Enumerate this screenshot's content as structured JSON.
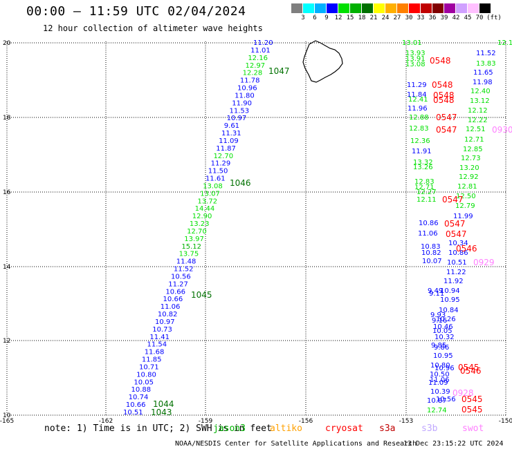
{
  "title": "00:00 – 11:59 UTC 02/04/2024",
  "subtitle": "12 hour collection of altimeter wave heights",
  "colorbar": {
    "colors": [
      "#7f7f7f",
      "#00ffff",
      "#00b0ff",
      "#0000ff",
      "#00e000",
      "#00b000",
      "#007000",
      "#ffff00",
      "#ffb000",
      "#ff8000",
      "#ff0000",
      "#c00000",
      "#800000",
      "#a000a0",
      "#d0a0ff",
      "#ffc0ff",
      "#000000"
    ],
    "labels": [
      "3",
      "6",
      "9",
      "12",
      "15",
      "18",
      "21",
      "24",
      "27",
      "30",
      "33",
      "36",
      "39",
      "42",
      "45",
      "70"
    ],
    "unit": "(ft)"
  },
  "axes": {
    "x_ticks": [
      "-165",
      "-162",
      "-159",
      "-156",
      "-153",
      "-150"
    ],
    "y_ticks": [
      "10",
      "12",
      "14",
      "16",
      "18",
      "20"
    ]
  },
  "tracks": {
    "track1": {
      "points": [
        [
          "11.20",
          "#0000ff"
        ],
        [
          "11.01",
          "#0000ff"
        ],
        [
          "12.16",
          "#00e000"
        ],
        [
          "12.97",
          "#00e000"
        ],
        [
          "12.28",
          "#00e000"
        ],
        [
          "11.78",
          "#0000ff"
        ],
        [
          "10.96",
          "#0000ff"
        ],
        [
          "11.80",
          "#0000ff"
        ],
        [
          "11.90",
          "#0000ff"
        ],
        [
          "11.53",
          "#0000ff"
        ],
        [
          "10.97",
          "#0000ff"
        ],
        [
          "9.61",
          "#0000ff"
        ],
        [
          "11.31",
          "#0000ff"
        ],
        [
          "11.09",
          "#0000ff"
        ],
        [
          "11.87",
          "#0000ff"
        ],
        [
          "12.70",
          "#00e000"
        ],
        [
          "11.29",
          "#0000ff"
        ],
        [
          "11.50",
          "#0000ff"
        ],
        [
          "11.61",
          "#0000ff"
        ],
        [
          "13.08",
          "#00e000"
        ],
        [
          "13.07",
          "#00e000"
        ],
        [
          "13.72",
          "#00e000"
        ],
        [
          "14.44",
          "#00e000"
        ],
        [
          "12.90",
          "#00e000"
        ],
        [
          "13.23",
          "#00e000"
        ],
        [
          "12.70",
          "#00e000"
        ],
        [
          "13.97",
          "#00e000"
        ],
        [
          "15.12",
          "#00b000"
        ],
        [
          "13.75",
          "#00e000"
        ],
        [
          "11.48",
          "#0000ff"
        ],
        [
          "11.52",
          "#0000ff"
        ],
        [
          "10.56",
          "#0000ff"
        ],
        [
          "11.27",
          "#0000ff"
        ],
        [
          "10.66",
          "#0000ff"
        ],
        [
          "10.66",
          "#0000ff"
        ],
        [
          "11.06",
          "#0000ff"
        ],
        [
          "10.82",
          "#0000ff"
        ],
        [
          "10.97",
          "#0000ff"
        ],
        [
          "10.73",
          "#0000ff"
        ],
        [
          "11.41",
          "#0000ff"
        ],
        [
          "11.54",
          "#0000ff"
        ],
        [
          "11.68",
          "#0000ff"
        ],
        [
          "11.85",
          "#0000ff"
        ],
        [
          "10.71",
          "#0000ff"
        ],
        [
          "10.80",
          "#0000ff"
        ],
        [
          "10.05",
          "#0000ff"
        ],
        [
          "10.88",
          "#0000ff"
        ],
        [
          "10.74",
          "#0000ff"
        ],
        [
          "10.66",
          "#0000ff"
        ],
        [
          "10.51",
          "#0000ff"
        ]
      ],
      "times": [
        "1047",
        "1046",
        "1045",
        "1044",
        "1043"
      ]
    },
    "track2": {
      "points": [
        [
          "13.01",
          "#00e000"
        ],
        [
          "13.93",
          "#00e000"
        ],
        [
          "13.91",
          "#00e000"
        ],
        [
          "13.08",
          "#00e000"
        ],
        [
          "11.29",
          "#0000ff"
        ],
        [
          "11.84",
          "#0000ff"
        ],
        [
          "12.41",
          "#00e000"
        ],
        [
          "11.96",
          "#0000ff"
        ],
        [
          "12.88",
          "#00e000"
        ],
        [
          "12.83",
          "#00e000"
        ],
        [
          "12.36",
          "#00e000"
        ],
        [
          "11.91",
          "#0000ff"
        ],
        [
          "13.32",
          "#00e000"
        ],
        [
          "13.26",
          "#00e000"
        ],
        [
          "12.83",
          "#00e000"
        ],
        [
          "12.71",
          "#00e000"
        ],
        [
          "12.27",
          "#00e000"
        ],
        [
          "12.11",
          "#00e000"
        ]
      ]
    },
    "track3": {
      "points": [
        [
          "12.16",
          "#00e000"
        ],
        [
          "11.52",
          "#0000ff"
        ],
        [
          "13.83",
          "#00e000"
        ],
        [
          "11.65",
          "#0000ff"
        ],
        [
          "11.98",
          "#0000ff"
        ],
        [
          "12.40",
          "#00e000"
        ],
        [
          "13.12",
          "#00e000"
        ],
        [
          "12.12",
          "#00e000"
        ],
        [
          "12.22",
          "#00e000"
        ],
        [
          "12.51",
          "#00e000"
        ],
        [
          "12.71",
          "#00e000"
        ],
        [
          "12.85",
          "#00e000"
        ],
        [
          "12.73",
          "#00e000"
        ],
        [
          "13.20",
          "#00e000"
        ],
        [
          "12.92",
          "#00e000"
        ],
        [
          "12.81",
          "#00e000"
        ],
        [
          "12.50",
          "#00e000"
        ],
        [
          "12.79",
          "#00e000"
        ],
        [
          "11.99",
          "#0000ff"
        ],
        [
          "10.86",
          "#0000ff"
        ],
        [
          "11.06",
          "#0000ff"
        ],
        [
          "10.34",
          "#0000ff"
        ],
        [
          "10.83",
          "#0000ff"
        ],
        [
          "10.82",
          "#0000ff"
        ],
        [
          "10.86",
          "#0000ff"
        ],
        [
          "10.07",
          "#0000ff"
        ],
        [
          "10.51",
          "#0000ff"
        ],
        [
          "11.22",
          "#0000ff"
        ],
        [
          "11.92",
          "#0000ff"
        ],
        [
          "9.49",
          "#0000ff"
        ],
        [
          "10.94",
          "#0000ff"
        ],
        [
          "9.11",
          "#0000ff"
        ],
        [
          "10.95",
          "#0000ff"
        ],
        [
          "10.84",
          "#0000ff"
        ],
        [
          "9.93",
          "#0000ff"
        ],
        [
          "10.26",
          "#0000ff"
        ],
        [
          "9.16",
          "#0000ff"
        ],
        [
          "10.46",
          "#0000ff"
        ],
        [
          "10.05",
          "#0000ff"
        ],
        [
          "10.32",
          "#0000ff"
        ],
        [
          "9.85",
          "#0000ff"
        ],
        [
          "9.86",
          "#0000ff"
        ],
        [
          "10.95",
          "#0000ff"
        ],
        [
          "10.80",
          "#0000ff"
        ],
        [
          "10.96",
          "#0000ff"
        ],
        [
          "10.50",
          "#0000ff"
        ],
        [
          "11.09",
          "#0000ff"
        ],
        [
          "11.06",
          "#0000ff"
        ],
        [
          "10.39",
          "#0000ff"
        ],
        [
          "10.87",
          "#0000ff"
        ],
        [
          "10.56",
          "#0000ff"
        ],
        [
          "12.74",
          "#00e000"
        ]
      ],
      "times": [
        "0548",
        "0548",
        "0548",
        "0548",
        "0547",
        "0547",
        "0547",
        "0547",
        "0547",
        "0546",
        "0545",
        "0546",
        "0545",
        "0545"
      ],
      "times_swot": [
        "0930",
        "0929",
        "0928"
      ]
    }
  },
  "note": "note: 1) Time is in UTC; 2) SWH is in feet",
  "legend": [
    {
      "name": "jason3",
      "color": "#00b000"
    },
    {
      "name": "altiko",
      "color": "#ffa000"
    },
    {
      "name": "cryosat",
      "color": "#ff0000"
    },
    {
      "name": "s3a",
      "color": "#c00000"
    },
    {
      "name": "s3b",
      "color": "#c0a8ff"
    },
    {
      "name": "swot",
      "color": "#ff80ff"
    }
  ],
  "credit": "NOAA/NESDIS Center for Satellite Applications and Research",
  "stamp": "13 Dec 23:15:22 UTC 2024"
}
